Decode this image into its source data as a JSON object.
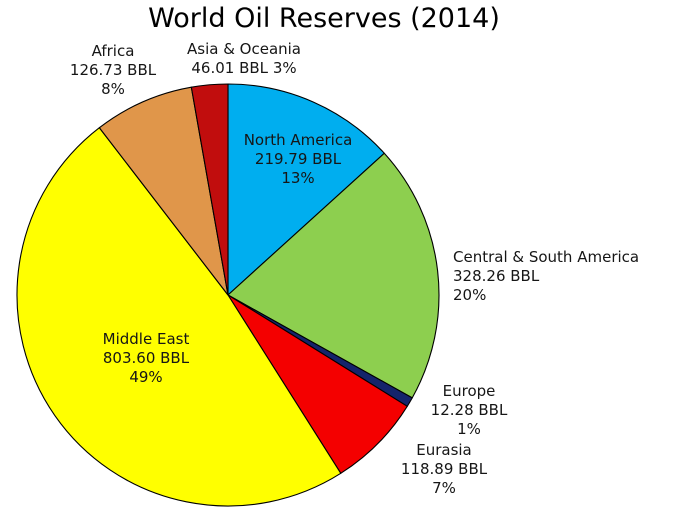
{
  "title": "World Oil Reserves (2014)",
  "text_color": "#161616",
  "chart_data": {
    "type": "pie",
    "title": "World Oil Reserves (2014)",
    "unit": "BBL",
    "start_angle_deg": 0,
    "direction": "clockwise",
    "background": "#ffffff",
    "outline_color": "#000000",
    "legend": "none",
    "slices": [
      {
        "label": "North America",
        "value": 219.79,
        "value_label": "219.79 BBL",
        "pct": 13,
        "pct_label": "13%",
        "color": "#00AEEF",
        "label_placement": "inside"
      },
      {
        "label": "Central & South America",
        "value": 328.26,
        "value_label": "328.26 BBL",
        "pct": 20,
        "pct_label": "20%",
        "color": "#8DCF4F",
        "label_placement": "outside"
      },
      {
        "label": "Europe",
        "value": 12.28,
        "value_label": "12.28 BBL",
        "pct": 1,
        "pct_label": "1%",
        "color": "#14246B",
        "label_placement": "outside"
      },
      {
        "label": "Eurasia",
        "value": 118.89,
        "value_label": "118.89 BBL",
        "pct": 7,
        "pct_label": "7%",
        "color": "#F40000",
        "label_placement": "outside"
      },
      {
        "label": "Middle East",
        "value": 803.6,
        "value_label": "803.60 BBL",
        "pct": 49,
        "pct_label": "49%",
        "color": "#FFFF00",
        "label_placement": "inside"
      },
      {
        "label": "Africa",
        "value": 126.73,
        "value_label": "126.73 BBL",
        "pct": 8,
        "pct_label": "8%",
        "color": "#E0964A",
        "label_placement": "outside"
      },
      {
        "label": "Asia & Oceania",
        "value": 46.01,
        "value_label": "46.01 BBL",
        "pct": 3,
        "pct_label": "3%",
        "color": "#C10D0D",
        "label_placement": "outside"
      }
    ]
  }
}
